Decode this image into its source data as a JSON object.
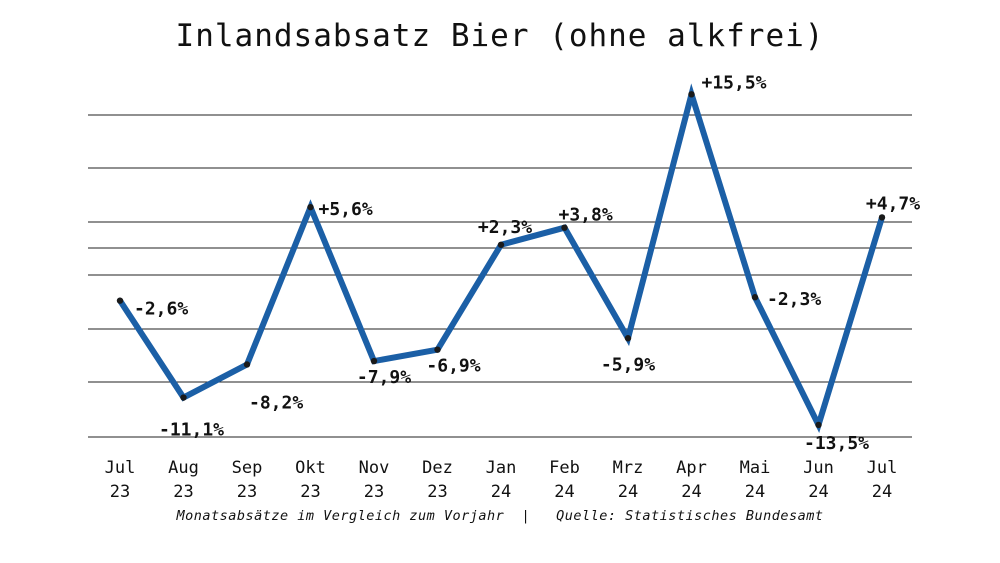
{
  "chart_data": {
    "type": "line",
    "title": "Inlandsabsatz Bier (ohne alkfrei)",
    "categories": [
      [
        "Jul",
        "23"
      ],
      [
        "Aug",
        "23"
      ],
      [
        "Sep",
        "23"
      ],
      [
        "Okt",
        "23"
      ],
      [
        "Nov",
        "23"
      ],
      [
        "Dez",
        "23"
      ],
      [
        "Jan",
        "24"
      ],
      [
        "Feb",
        "24"
      ],
      [
        "Mrz",
        "24"
      ],
      [
        "Apr",
        "24"
      ],
      [
        "Mai",
        "24"
      ],
      [
        "Jun",
        "24"
      ],
      [
        "Jul",
        "24"
      ]
    ],
    "values": [
      -2.6,
      -11.1,
      -8.2,
      5.6,
      -7.9,
      -6.9,
      2.3,
      3.8,
      -5.9,
      15.5,
      -2.3,
      -13.5,
      4.7
    ],
    "value_labels": [
      "-2,6%",
      "-11,1%",
      "-8,2%",
      "+5,6%",
      "-7,9%",
      "-6,9%",
      "+2,3%",
      "+3,8%",
      "-5,9%",
      "+15,5%",
      "-2,3%",
      "-13,5%",
      "+4,7%"
    ],
    "ylim": [
      -18,
      18
    ],
    "grid": true,
    "line_color": "#1b5fa6",
    "footer": "Monatsabsätze im Vergleich zum Vorjahr  |   Quelle: Statistisches Bundesamt"
  }
}
